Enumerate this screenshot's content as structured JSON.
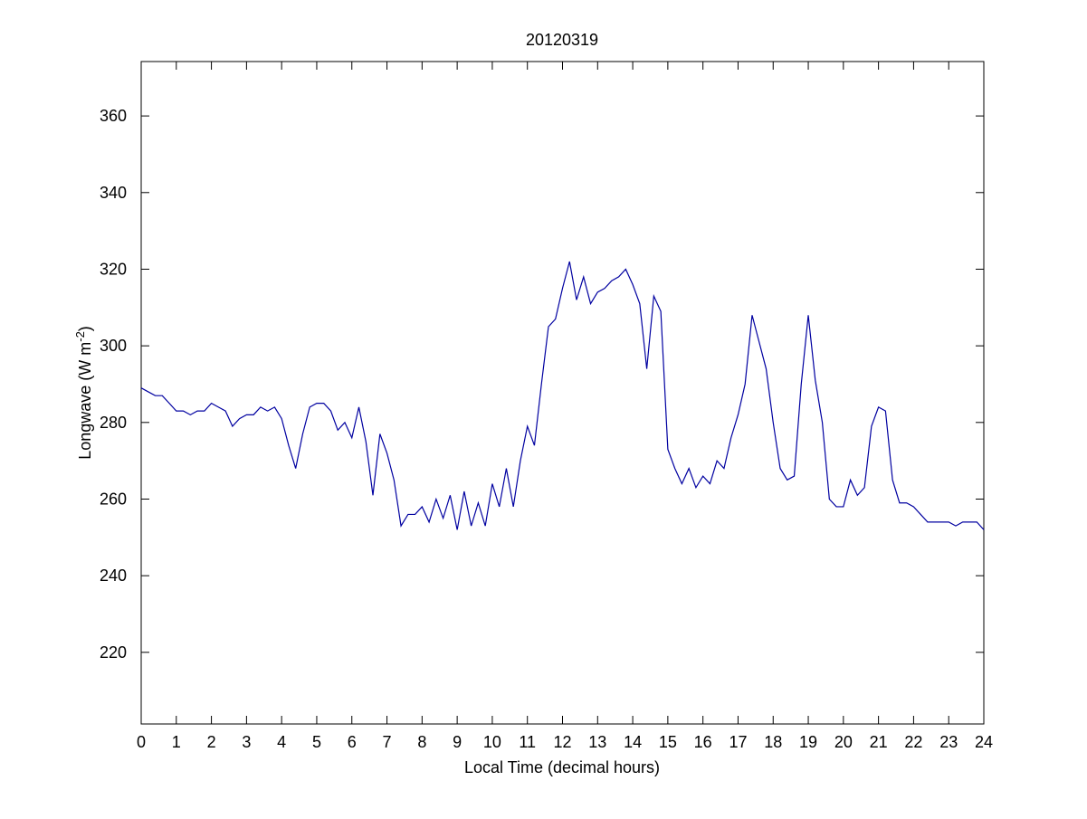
{
  "chart_data": {
    "type": "line",
    "title": "20120319",
    "x_label": "Local Time (decimal hours)",
    "y_label": [
      "Longwave (W m",
      "-2",
      ")"
    ],
    "color": "#0000a0",
    "x": [
      0,
      0.2,
      0.4,
      0.6,
      0.8,
      1,
      1.2,
      1.4,
      1.6,
      1.8,
      2,
      2.2,
      2.4,
      2.6,
      2.8,
      3,
      3.2,
      3.4,
      3.6,
      3.8,
      4,
      4.2,
      4.4,
      4.6,
      4.8,
      5,
      5.2,
      5.4,
      5.6,
      5.8,
      6,
      6.2,
      6.4,
      6.6,
      6.8,
      7,
      7.2,
      7.4,
      7.6,
      7.8,
      8,
      8.2,
      8.4,
      8.6,
      8.8,
      9,
      9.2,
      9.4,
      9.6,
      9.8,
      10,
      10.2,
      10.4,
      10.6,
      10.8,
      11,
      11.2,
      11.4,
      11.6,
      11.8,
      12,
      12.2,
      12.4,
      12.6,
      12.8,
      13,
      13.2,
      13.4,
      13.6,
      13.8,
      14,
      14.2,
      14.4,
      14.6,
      14.8,
      15,
      15.2,
      15.4,
      15.6,
      15.8,
      16,
      16.2,
      16.4,
      16.6,
      16.8,
      17,
      17.2,
      17.4,
      17.6,
      17.8,
      18,
      18.2,
      18.4,
      18.6,
      18.8,
      19,
      19.2,
      19.4,
      19.6,
      19.8,
      20,
      20.2,
      20.4,
      20.6,
      20.8,
      21,
      21.2,
      21.4,
      21.6,
      21.8,
      22,
      22.2,
      22.4,
      22.6,
      22.8,
      23,
      23.2,
      23.4,
      23.6,
      23.8,
      24
    ],
    "values": [
      289,
      288,
      287,
      287,
      285,
      283,
      283,
      282,
      283,
      283,
      285,
      284,
      283,
      279,
      281,
      282,
      282,
      284,
      283,
      284,
      281,
      274,
      268,
      277,
      284,
      285,
      285,
      283,
      278,
      280,
      276,
      284,
      275,
      261,
      277,
      272,
      265,
      253,
      256,
      256,
      258,
      254,
      260,
      255,
      261,
      252,
      262,
      253,
      259,
      253,
      264,
      258,
      268,
      258,
      270,
      279,
      274,
      290,
      305,
      307,
      315,
      322,
      312,
      318,
      311,
      314,
      315,
      317,
      318,
      320,
      316,
      311,
      294,
      313,
      309,
      273,
      268,
      264,
      268,
      263,
      266,
      264,
      270,
      268,
      276,
      282,
      290,
      308,
      301,
      294,
      280,
      268,
      265,
      266,
      290,
      308,
      291,
      280,
      260,
      258,
      258,
      265,
      261,
      263,
      279,
      284,
      283,
      265,
      259,
      259,
      258,
      256,
      254,
      254,
      254,
      254,
      253,
      254,
      254,
      254,
      252
    ],
    "xlim": [
      0,
      24
    ],
    "xticks": [
      0,
      1,
      2,
      3,
      4,
      5,
      6,
      7,
      8,
      9,
      10,
      11,
      12,
      13,
      14,
      15,
      16,
      17,
      18,
      19,
      20,
      21,
      22,
      23,
      24
    ],
    "ylim": [
      201.3,
      374.2
    ],
    "yticks": [
      220,
      240,
      260,
      280,
      300,
      320,
      340,
      360
    ],
    "grid": false
  }
}
